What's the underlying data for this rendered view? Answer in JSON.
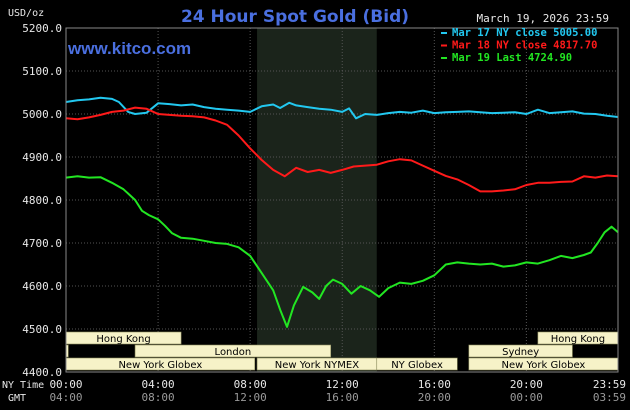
{
  "chart_data": {
    "type": "line",
    "title": "24 Hour Spot Gold (Bid)",
    "source": "www.kitco.com",
    "date": "March 19, 2026 23:59",
    "ylabel": "USD/oz",
    "ylim": [
      4400,
      5200
    ],
    "yticks": [
      "5200.0",
      "5100.0",
      "5000.0",
      "4900.0",
      "4800.0",
      "4700.0",
      "4600.0",
      "4500.0",
      "4400.0"
    ],
    "grid": true,
    "legend_position": "top-right",
    "x_row1_label": "NY Time",
    "x_row2_label": "GMT",
    "x_ticks_ny": [
      "00:00",
      "04:00",
      "08:00",
      "12:00",
      "16:00",
      "20:00",
      "23:59"
    ],
    "x_ticks_gmt": [
      "04:00",
      "08:00",
      "12:00",
      "16:00",
      "20:00",
      "00:00",
      "03:59"
    ],
    "series": [
      {
        "name": "Mar 17 NY close 5005.00",
        "color": "#22c8f0",
        "x": [
          0,
          0.5,
          1,
          1.5,
          2,
          2.3,
          2.7,
          3,
          3.5,
          4,
          4.5,
          5,
          5.5,
          6,
          6.5,
          7,
          7.5,
          8,
          8.5,
          9,
          9.3,
          9.7,
          10,
          10.5,
          11,
          11.5,
          12,
          12.3,
          12.6,
          13,
          13.5,
          14,
          14.5,
          15,
          15.5,
          16,
          16.5,
          17,
          17.5,
          18,
          18.5,
          19,
          19.5,
          20,
          20.5,
          21,
          21.5,
          22,
          22.5,
          23,
          23.5,
          23.98
        ],
        "y": [
          5028,
          5032,
          5034,
          5038,
          5035,
          5028,
          5005,
          5000,
          5003,
          5025,
          5023,
          5020,
          5022,
          5016,
          5012,
          5010,
          5008,
          5005,
          5018,
          5022,
          5014,
          5026,
          5020,
          5016,
          5012,
          5010,
          5005,
          5013,
          4990,
          5000,
          4998,
          5002,
          5005,
          5003,
          5008,
          5002,
          5004,
          5005,
          5006,
          5004,
          5002,
          5003,
          5004,
          5000,
          5010,
          5002,
          5004,
          5006,
          5001,
          5000,
          4996,
          4993
        ]
      },
      {
        "name": "Mar 18 NY close 4817.70",
        "color": "#ff1a1a",
        "x": [
          0,
          0.5,
          1,
          1.5,
          2,
          2.5,
          3,
          3.5,
          4,
          4.5,
          5,
          5.5,
          6,
          6.5,
          7,
          7.5,
          8,
          8.5,
          9,
          9.5,
          10,
          10.5,
          11,
          11.5,
          12,
          12.5,
          13,
          13.5,
          14,
          14.5,
          15,
          15.5,
          16,
          16.5,
          17,
          17.5,
          18,
          18.5,
          19,
          19.5,
          20,
          20.5,
          21,
          21.5,
          22,
          22.5,
          23,
          23.5,
          23.98
        ],
        "y": [
          4990,
          4988,
          4992,
          4998,
          5005,
          5008,
          5015,
          5012,
          5000,
          4998,
          4996,
          4995,
          4992,
          4985,
          4975,
          4950,
          4920,
          4893,
          4870,
          4855,
          4875,
          4865,
          4870,
          4863,
          4870,
          4878,
          4880,
          4882,
          4890,
          4895,
          4892,
          4880,
          4868,
          4856,
          4848,
          4835,
          4820,
          4820,
          4822,
          4825,
          4835,
          4840,
          4840,
          4842,
          4843,
          4855,
          4852,
          4857,
          4855
        ]
      },
      {
        "name": "Mar 19 Last 4724.90",
        "color": "#22e622",
        "x": [
          0,
          0.5,
          1,
          1.5,
          2,
          2.5,
          3,
          3.3,
          3.6,
          4,
          4.3,
          4.6,
          5,
          5.5,
          6,
          6.5,
          7,
          7.5,
          8,
          8.5,
          9,
          9.3,
          9.6,
          9.9,
          10.3,
          10.7,
          11,
          11.3,
          11.6,
          12,
          12.4,
          12.8,
          13.2,
          13.6,
          14,
          14.5,
          15,
          15.5,
          16,
          16.5,
          17,
          17.5,
          18,
          18.5,
          19,
          19.5,
          20,
          20.5,
          21,
          21.5,
          22,
          22.5,
          22.8,
          23.1,
          23.4,
          23.7,
          23.98
        ],
        "y": [
          4852,
          4855,
          4852,
          4853,
          4840,
          4825,
          4800,
          4775,
          4765,
          4755,
          4740,
          4723,
          4712,
          4710,
          4705,
          4700,
          4698,
          4690,
          4670,
          4630,
          4590,
          4545,
          4505,
          4555,
          4598,
          4585,
          4570,
          4600,
          4615,
          4605,
          4582,
          4600,
          4590,
          4575,
          4595,
          4608,
          4605,
          4612,
          4625,
          4650,
          4655,
          4652,
          4650,
          4652,
          4645,
          4648,
          4655,
          4652,
          4660,
          4670,
          4665,
          4672,
          4678,
          4700,
          4725,
          4738,
          4725
        ]
      }
    ],
    "highlight_band_hours": [
      8.3,
      13.5
    ],
    "sessions": [
      {
        "label": "Hong Kong",
        "row": 0,
        "start": 0,
        "end": 5.0
      },
      {
        "label": "Hong Kong",
        "row": 0,
        "start": 20.5,
        "end": 23.98
      },
      {
        "label": "London",
        "row": 1,
        "start": 0,
        "end": 0.1
      },
      {
        "label": "London",
        "row": 1,
        "start": 3.0,
        "end": 11.5
      },
      {
        "label": "Sydney",
        "row": 1,
        "start": 17.5,
        "end": 22.0
      },
      {
        "label": "New York Globex",
        "row": 2,
        "start": 0,
        "end": 8.2
      },
      {
        "label": "New York NYMEX",
        "row": 2,
        "start": 8.3,
        "end": 13.5
      },
      {
        "label": "NY Globex",
        "row": 2,
        "start": 13.5,
        "end": 17.0
      },
      {
        "label": "New York Globex",
        "row": 2,
        "start": 17.5,
        "end": 23.98
      }
    ]
  }
}
